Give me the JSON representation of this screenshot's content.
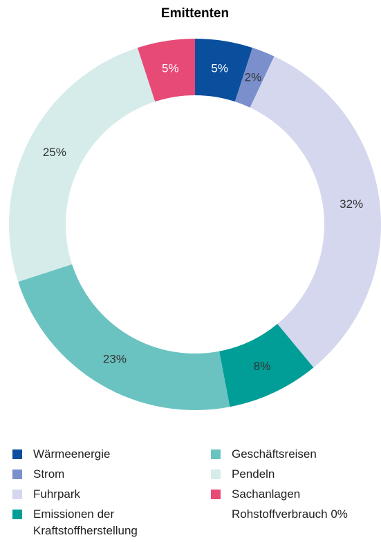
{
  "chart_data": {
    "type": "donut",
    "title": "Emittenten",
    "categories": [
      "Wärmeenergie",
      "Strom",
      "Fuhrpark",
      "Emissionen der Kraftstoffherstellung",
      "Geschäftsreisen",
      "Pendeln",
      "Sachanlagen",
      "Rohstoffverbrauch"
    ],
    "values": [
      5,
      2,
      32,
      8,
      23,
      25,
      5,
      0
    ],
    "value_labels": [
      "5%",
      "2%",
      "32%",
      "8%",
      "23%",
      "25%",
      "5%",
      "0%"
    ],
    "colors": [
      "#0a4f9e",
      "#7b8fcc",
      "#d4d7ee",
      "#009e97",
      "#6ac3c1",
      "#d5ecea",
      "#e84a76",
      null
    ]
  }
}
